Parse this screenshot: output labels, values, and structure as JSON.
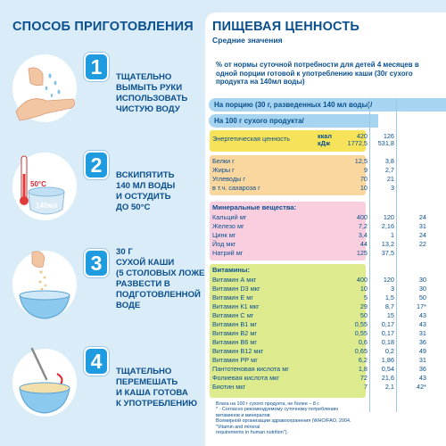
{
  "left": {
    "title": "СПОСОБ ПРИГОТОВЛЕНИЯ",
    "steps": [
      {
        "num": "1",
        "lines": [
          "ТЩАТЕЛЬНО",
          "ВЫМЫТЬ РУКИ",
          "ИСПОЛЬЗОВАТЬ",
          "ЧИСТУЮ ВОДУ"
        ]
      },
      {
        "num": "2",
        "lines": [
          "ВСКИПЯТИТЬ",
          "140 МЛ ВОДЫ",
          "И ОСТУДИТЬ",
          "ДО 50°С"
        ],
        "temp_label": "50°С",
        "water_label": "140мл"
      },
      {
        "num": "3",
        "lines": [
          "30 Г",
          "СУХОЙ КАШИ",
          "(5 СТОЛОВЫХ ЛОЖЕК)",
          "РАЗВЕСТИ В",
          "ПОДГОТОВЛЕННОЙ",
          "ВОДЕ"
        ]
      },
      {
        "num": "4",
        "lines": [
          "ТЩАТЕЛЬНО",
          "ПЕРЕМЕШАТЬ",
          "И КАША ГОТОВА",
          "К УПОТРЕБЛЕНИЮ"
        ]
      }
    ]
  },
  "right": {
    "title": "ПИЩЕВАЯ ЦЕННОСТЬ",
    "subtitle": "Средние значения",
    "intro": "% от нормы суточной потребности для детей 4 месяцев в одной порции готовой к употреблению каши (30г сухого продукта на 140мл воды)",
    "portion_header": "На порцию (30 г, разведенных 140 мл воды)/",
    "dry_header": "На 100 г сухого продукта/",
    "energy": {
      "label": "Энергетическая ценность",
      "units1": "ккал",
      "units2": "кДж",
      "v1a": "420",
      "v1b": "1772,5",
      "v2a": "126",
      "v2b": "531,8"
    },
    "macro": [
      {
        "label": "Белки г",
        "v1": "12,5",
        "v2": "3,8",
        "v3": ""
      },
      {
        "label": "Жиры г",
        "v1": "9",
        "v2": "2,7",
        "v3": ""
      },
      {
        "label": "Углеводы г",
        "v1": "70",
        "v2": "21",
        "v3": ""
      },
      {
        "label": "в т.ч. сахароза г",
        "v1": "10",
        "v2": "3",
        "v3": ""
      }
    ],
    "minerals_title": "Минеральные вещества:",
    "minerals": [
      {
        "label": "Кальций мг",
        "v1": "400",
        "v2": "120",
        "v3": "24"
      },
      {
        "label": "Железо мг",
        "v1": "7,2",
        "v2": "2,16",
        "v3": "31"
      },
      {
        "label": "Цинк мг",
        "v1": "3,4",
        "v2": "1",
        "v3": "24"
      },
      {
        "label": "Йод мкг",
        "v1": "44",
        "v2": "13,2",
        "v3": "22"
      },
      {
        "label": "Натрий мг",
        "v1": "125",
        "v2": "37,5",
        "v3": ""
      }
    ],
    "vitamins_title": "Витамины:",
    "vitamins": [
      {
        "label": "Витамин А мкг",
        "v1": "400",
        "v2": "120",
        "v3": "30"
      },
      {
        "label": "Витамин D3 мкг",
        "v1": "10",
        "v2": "3",
        "v3": "30"
      },
      {
        "label": "Витамин Е мг",
        "v1": "5",
        "v2": "1,5",
        "v3": "50"
      },
      {
        "label": "Витамин К1 мкг",
        "v1": "29",
        "v2": "8,7",
        "v3": "17*"
      },
      {
        "label": "Витамин С мг",
        "v1": "50",
        "v2": "15",
        "v3": "43"
      },
      {
        "label": "Витамин В1 мг",
        "v1": "0,55",
        "v2": "0,17",
        "v3": "43"
      },
      {
        "label": "Витамин В2 мг",
        "v1": "0,55",
        "v2": "0,17",
        "v3": "31"
      },
      {
        "label": "Витамин В6 мг",
        "v1": "0,6",
        "v2": "0,18",
        "v3": "36"
      },
      {
        "label": "Витамин В12 мкг",
        "v1": "0,65",
        "v2": "0,2",
        "v3": "49"
      },
      {
        "label": "Витамин РР мг",
        "v1": "6,2",
        "v2": "1,86",
        "v3": "31"
      },
      {
        "label": "Пантотеновая кислота мг",
        "v1": "1,8",
        "v2": "0,54",
        "v3": "36"
      },
      {
        "label": "Фолиевая кислота мкг",
        "v1": "72",
        "v2": "21,6",
        "v3": "43"
      },
      {
        "label": "Биотин мкг",
        "v1": "7",
        "v2": "2,1",
        "v3": "42*"
      }
    ],
    "footnote_lines": [
      "Влага на 100 г сухого продукта, не более – 8 г.",
      "* - Согласно рекомендуемому суточному потреблению витаминов и минералов",
      "Всемирной организации здравоохранения (WHO/FAO, 2004. \"Vitamin and mineral",
      "requirements in human nutrition\")."
    ],
    "colors": {
      "energy": "#f7e35a",
      "macro": "#fbd7a0",
      "minerals": "#f9cfe0",
      "vitamins": "#ddeb8e",
      "header": "#a7d5f1",
      "text": "#0a4f8e",
      "badge": "#1f9be0"
    }
  }
}
